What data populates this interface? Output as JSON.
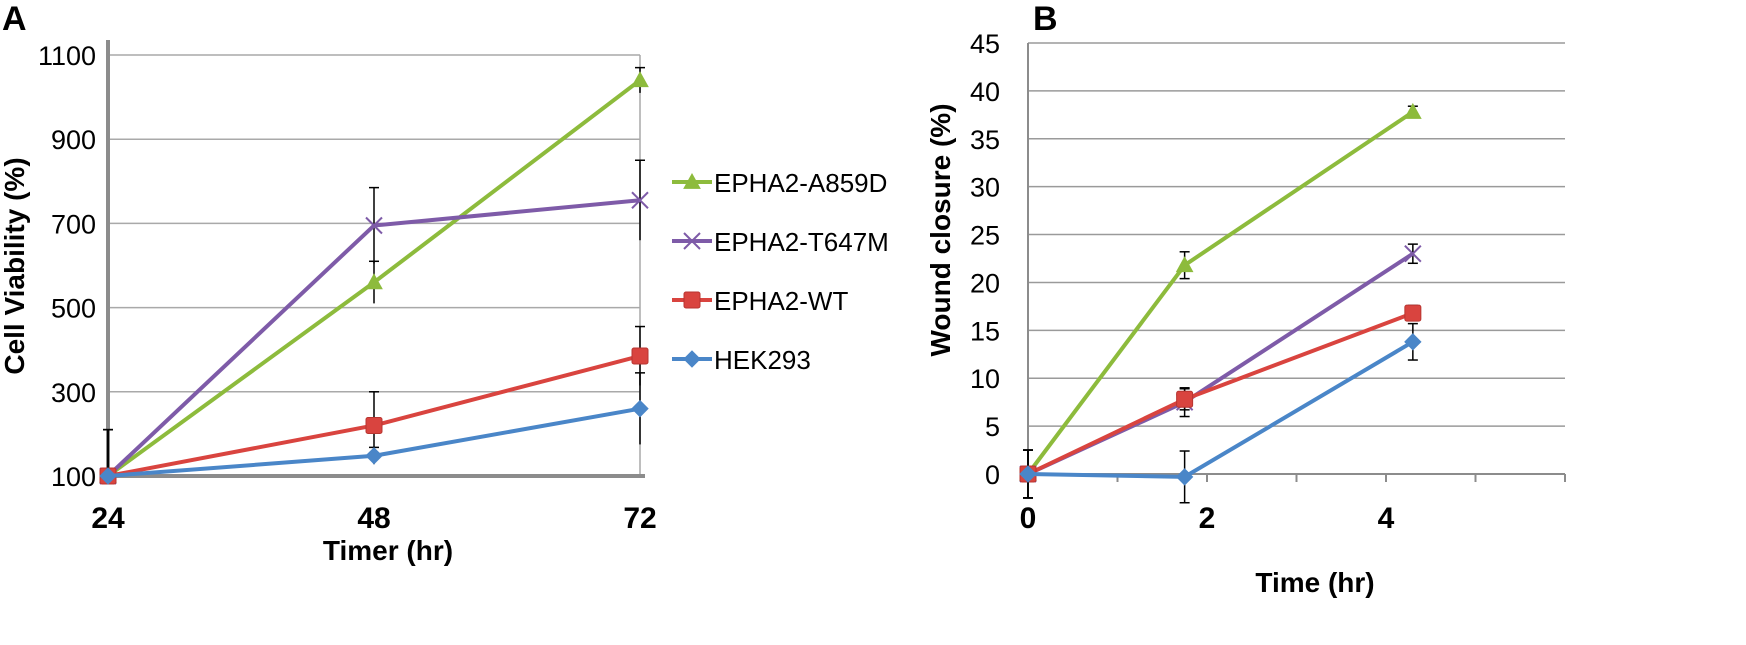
{
  "chart_data": [
    {
      "panel": "A",
      "type": "line",
      "xlabel": "Timer (hr)",
      "ylabel": "Cell Viability (%)",
      "x": [
        24,
        48,
        72
      ],
      "x_ticks": [
        "24",
        "48",
        "72"
      ],
      "y_ticks": [
        "100",
        "300",
        "500",
        "700",
        "900",
        "1100"
      ],
      "ylim": [
        100,
        1100
      ],
      "grid": true,
      "legend_position": "right",
      "series": [
        {
          "name": "EPHA2-A859D",
          "color": "#8DBB3C",
          "marker": "triangle",
          "values": [
            100,
            560,
            1040
          ],
          "errors": [
            110,
            50,
            30
          ]
        },
        {
          "name": "EPHA2-T647M",
          "color": "#7E5BA8",
          "marker": "x",
          "values": [
            100,
            695,
            755
          ],
          "errors": [
            110,
            90,
            95
          ]
        },
        {
          "name": "EPHA2-WT",
          "color": "#D9443F",
          "marker": "square",
          "values": [
            100,
            220,
            385
          ],
          "errors": [
            110,
            80,
            70
          ]
        },
        {
          "name": "HEK293",
          "color": "#4A86C8",
          "marker": "diamond",
          "values": [
            100,
            148,
            260
          ],
          "errors": [
            110,
            20,
            85
          ]
        }
      ]
    },
    {
      "panel": "B",
      "type": "line",
      "xlabel": "Time (hr)",
      "ylabel": "Wound closure (%)",
      "x": [
        0,
        1.75,
        4.3
      ],
      "x_ticks": [
        "0",
        "2",
        "4"
      ],
      "y_ticks": [
        "0",
        "5",
        "10",
        "15",
        "20",
        "25",
        "30",
        "35",
        "40",
        "45"
      ],
      "xlim": [
        0,
        6
      ],
      "ylim": [
        0,
        45
      ],
      "grid": true,
      "series": [
        {
          "name": "EPHA2-A859D",
          "color": "#8DBB3C",
          "marker": "triangle",
          "values": [
            0,
            21.8,
            37.8
          ],
          "errors": [
            2.5,
            1.4,
            0.6
          ]
        },
        {
          "name": "EPHA2-T647M",
          "color": "#7E5BA8",
          "marker": "x",
          "values": [
            0,
            7.5,
            23.0
          ],
          "errors": [
            2.5,
            1.5,
            1.0
          ]
        },
        {
          "name": "EPHA2-WT",
          "color": "#D9443F",
          "marker": "square",
          "values": [
            0,
            7.8,
            16.8
          ],
          "errors": [
            2.5,
            1.1,
            0.8
          ]
        },
        {
          "name": "HEK293",
          "color": "#4A86C8",
          "marker": "diamond",
          "values": [
            0,
            -0.3,
            13.8
          ],
          "errors": [
            2.5,
            2.7,
            1.9
          ]
        }
      ]
    }
  ]
}
